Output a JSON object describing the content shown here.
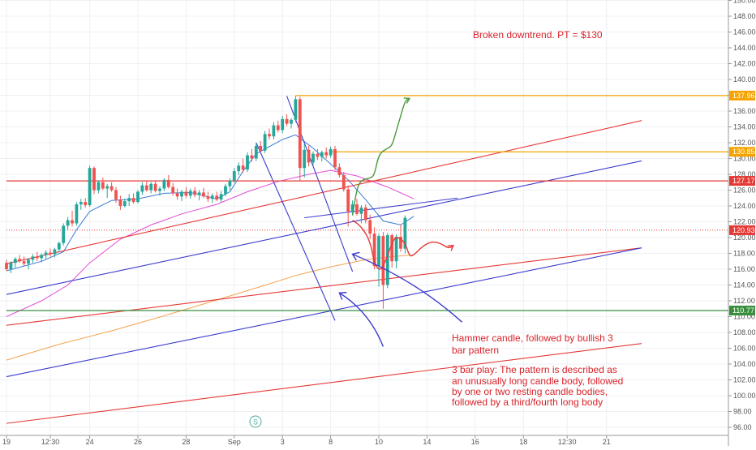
{
  "chart_data": {
    "type": "candlestick",
    "title": "",
    "ylim": [
      96,
      150
    ],
    "y_ticks": [
      "96.00",
      "98.00",
      "100.00",
      "102.00",
      "104.00",
      "106.00",
      "108.00",
      "110.00",
      "112.00",
      "114.00",
      "116.00",
      "118.00",
      "120.00",
      "122.00",
      "124.00",
      "126.00",
      "128.00",
      "130.00",
      "132.00",
      "134.00",
      "136.00",
      "138.00",
      "140.00",
      "142.00",
      "144.00",
      "146.00",
      "148.00",
      "150.00"
    ],
    "x_ticks": [
      {
        "label": "19",
        "idx": 0
      },
      {
        "label": "12:30",
        "idx": 10
      },
      {
        "label": "24",
        "idx": 19
      },
      {
        "label": "26",
        "idx": 30
      },
      {
        "label": "28",
        "idx": 41
      },
      {
        "label": "Sep",
        "idx": 52
      },
      {
        "label": "3",
        "idx": 63
      },
      {
        "label": "8",
        "idx": 74
      },
      {
        "label": "10",
        "idx": 85
      },
      {
        "label": "14",
        "idx": 96
      },
      {
        "label": "16",
        "idx": 107
      },
      {
        "label": "18",
        "idx": 118
      },
      {
        "label": "12:30",
        "idx": 128
      },
      {
        "label": "21",
        "idx": 137
      }
    ],
    "grid": true,
    "candles": [
      [
        116.8,
        117.2,
        115.8,
        116.0
      ],
      [
        116.0,
        117.0,
        115.5,
        116.8
      ],
      [
        116.8,
        117.5,
        116.2,
        117.3
      ],
      [
        117.3,
        117.8,
        116.8,
        117.0
      ],
      [
        117.0,
        117.6,
        116.4,
        116.7
      ],
      [
        116.7,
        117.4,
        116.0,
        117.2
      ],
      [
        117.2,
        117.9,
        116.8,
        117.6
      ],
      [
        117.6,
        118.2,
        117.0,
        117.4
      ],
      [
        117.4,
        118.0,
        116.9,
        117.8
      ],
      [
        117.8,
        118.4,
        117.3,
        118.1
      ],
      [
        118.1,
        118.6,
        117.6,
        117.9
      ],
      [
        117.9,
        118.7,
        117.5,
        118.5
      ],
      [
        118.5,
        119.5,
        118.2,
        119.3
      ],
      [
        119.3,
        121.8,
        119.0,
        121.5
      ],
      [
        121.5,
        122.6,
        121.0,
        122.2
      ],
      [
        122.2,
        123.4,
        121.4,
        121.8
      ],
      [
        121.8,
        124.5,
        121.5,
        124.2
      ],
      [
        124.2,
        124.9,
        123.5,
        124.5
      ],
      [
        124.5,
        125.0,
        123.8,
        124.1
      ],
      [
        124.1,
        129.1,
        123.9,
        128.8
      ],
      [
        128.8,
        129.0,
        125.5,
        126.0
      ],
      [
        126.0,
        127.2,
        125.6,
        127.0
      ],
      [
        127.0,
        127.6,
        126.0,
        126.2
      ],
      [
        126.2,
        126.8,
        125.0,
        126.5
      ],
      [
        126.5,
        127.0,
        125.8,
        126.0
      ],
      [
        126.0,
        126.4,
        124.4,
        124.8
      ],
      [
        124.8,
        125.3,
        123.5,
        124.0
      ],
      [
        124.0,
        124.9,
        123.8,
        124.6
      ],
      [
        124.6,
        125.5,
        124.0,
        125.0
      ],
      [
        125.0,
        125.6,
        124.3,
        124.5
      ],
      [
        124.5,
        126.0,
        124.3,
        125.8
      ],
      [
        125.8,
        127.0,
        125.4,
        126.6
      ],
      [
        126.6,
        127.2,
        125.8,
        126.0
      ],
      [
        126.0,
        127.0,
        125.6,
        126.8
      ],
      [
        126.8,
        127.1,
        125.7,
        125.9
      ],
      [
        125.9,
        126.5,
        125.3,
        126.2
      ],
      [
        126.2,
        127.5,
        125.9,
        127.3
      ],
      [
        127.3,
        127.9,
        126.2,
        126.4
      ],
      [
        126.4,
        126.9,
        125.3,
        125.6
      ],
      [
        125.6,
        126.2,
        124.8,
        125.2
      ],
      [
        125.2,
        126.0,
        124.6,
        125.8
      ],
      [
        125.8,
        126.4,
        125.0,
        125.3
      ],
      [
        125.3,
        126.2,
        124.9,
        125.9
      ],
      [
        125.9,
        126.4,
        125.1,
        125.4
      ],
      [
        125.4,
        126.0,
        124.7,
        125.7
      ],
      [
        125.7,
        126.3,
        125.0,
        125.2
      ],
      [
        125.2,
        125.8,
        124.5,
        124.9
      ],
      [
        124.9,
        125.6,
        124.4,
        125.3
      ],
      [
        125.3,
        125.8,
        124.6,
        124.8
      ],
      [
        124.8,
        125.9,
        124.5,
        125.5
      ],
      [
        125.5,
        126.8,
        125.2,
        126.5
      ],
      [
        126.5,
        127.5,
        126.0,
        127.2
      ],
      [
        127.2,
        128.8,
        126.9,
        128.4
      ],
      [
        128.4,
        129.5,
        127.9,
        129.1
      ],
      [
        129.1,
        130.0,
        128.2,
        128.6
      ],
      [
        128.6,
        130.8,
        128.3,
        130.4
      ],
      [
        130.4,
        131.2,
        129.6,
        130.0
      ],
      [
        130.0,
        132.0,
        129.7,
        131.6
      ],
      [
        131.6,
        132.2,
        130.8,
        131.0
      ],
      [
        131.0,
        133.5,
        130.7,
        133.1
      ],
      [
        133.1,
        133.8,
        132.4,
        132.8
      ],
      [
        132.8,
        134.6,
        132.4,
        134.2
      ],
      [
        134.2,
        134.8,
        133.3,
        133.6
      ],
      [
        133.6,
        135.4,
        133.2,
        135.0
      ],
      [
        135.0,
        135.6,
        134.1,
        134.4
      ],
      [
        134.4,
        135.1,
        133.8,
        134.9
      ],
      [
        134.9,
        137.9,
        134.6,
        137.5
      ],
      [
        137.5,
        137.8,
        127.2,
        128.8
      ],
      [
        128.8,
        131.8,
        127.6,
        131.1
      ],
      [
        131.1,
        131.6,
        129.0,
        129.5
      ],
      [
        129.5,
        130.9,
        129.1,
        130.6
      ],
      [
        130.6,
        131.2,
        129.8,
        130.2
      ],
      [
        130.2,
        131.0,
        129.6,
        130.8
      ],
      [
        130.8,
        131.4,
        130.0,
        130.4
      ],
      [
        130.4,
        131.5,
        130.1,
        131.2
      ],
      [
        131.2,
        131.6,
        128.5,
        128.9
      ],
      [
        128.9,
        129.4,
        127.6,
        127.9
      ],
      [
        127.9,
        128.3,
        125.8,
        126.1
      ],
      [
        126.1,
        126.6,
        121.4,
        123.3
      ],
      [
        123.3,
        124.7,
        122.9,
        124.2
      ],
      [
        124.2,
        124.9,
        122.8,
        123.0
      ],
      [
        123.0,
        124.1,
        121.8,
        123.8
      ],
      [
        123.8,
        124.2,
        121.8,
        122.2
      ],
      [
        122.2,
        122.9,
        119.8,
        120.5
      ],
      [
        120.5,
        121.3,
        116.0,
        116.4
      ],
      [
        116.4,
        120.5,
        113.8,
        120.2
      ],
      [
        120.2,
        120.7,
        111.0,
        114.0
      ],
      [
        114.0,
        120.6,
        113.6,
        120.3
      ],
      [
        120.3,
        120.5,
        116.2,
        117.0
      ],
      [
        117.0,
        120.4,
        116.1,
        120.1
      ],
      [
        120.1,
        121.6,
        118.2,
        118.6
      ],
      [
        118.6,
        122.8,
        118.0,
        122.5
      ]
    ],
    "moving_averages": [
      {
        "name": "",
        "color": "#3a7bd5",
        "values": [
          [
            0,
            115.8
          ],
          [
            8,
            117.0
          ],
          [
            13,
            118.2
          ],
          [
            16,
            121.0
          ],
          [
            19,
            123.3
          ],
          [
            24,
            124.7
          ],
          [
            30,
            124.9
          ],
          [
            36,
            125.6
          ],
          [
            42,
            125.7
          ],
          [
            48,
            124.9
          ],
          [
            51,
            125.8
          ],
          [
            54,
            128.4
          ],
          [
            57,
            130.6
          ],
          [
            63,
            132.4
          ],
          [
            66,
            133.0
          ],
          [
            70,
            131.3
          ],
          [
            74,
            129.3
          ],
          [
            78,
            127.3
          ],
          [
            82,
            124.8
          ],
          [
            86,
            122.1
          ],
          [
            90,
            121.6
          ],
          [
            93,
            122.7
          ]
        ]
      },
      {
        "name": "",
        "color": "#e24bd3",
        "values": [
          [
            0,
            110.0
          ],
          [
            8,
            112.0
          ],
          [
            14,
            114.0
          ],
          [
            19,
            116.8
          ],
          [
            26,
            119.8
          ],
          [
            33,
            121.6
          ],
          [
            40,
            123.0
          ],
          [
            48,
            124.2
          ],
          [
            55,
            125.8
          ],
          [
            62,
            127.1
          ],
          [
            69,
            128.0
          ],
          [
            74,
            128.5
          ],
          [
            80,
            127.8
          ],
          [
            87,
            126.4
          ],
          [
            93,
            124.9
          ]
        ]
      },
      {
        "name": "",
        "color": "#f4a34f",
        "values": [
          [
            0,
            104.5
          ],
          [
            12,
            106.5
          ],
          [
            24,
            108.2
          ],
          [
            36,
            110.1
          ],
          [
            48,
            112.1
          ],
          [
            58,
            113.8
          ],
          [
            66,
            115.2
          ],
          [
            74,
            116.3
          ],
          [
            82,
            117.2
          ],
          [
            88,
            117.6
          ],
          [
            93,
            117.8
          ]
        ]
      }
    ],
    "horizontal_levels": [
      {
        "price": 137.96,
        "label": "137.96",
        "color": "#f6a300",
        "x_start_idx": 66
      },
      {
        "price": 130.85,
        "label": "130.85",
        "color": "#f6a300",
        "x_start_idx": 74
      },
      {
        "price": 127.17,
        "label": "127.17",
        "color": "#e53935",
        "x_start_idx": 0
      },
      {
        "price": 120.93,
        "label": "120.93",
        "color": "#e53935",
        "x_start_idx": 0,
        "dotted": true
      },
      {
        "price": 110.77,
        "label": "110.77",
        "color": "#388e3c",
        "x_start_idx": 0
      }
    ],
    "trendlines": [
      {
        "color": "#e53935",
        "from": [
          0,
          116.7
        ],
        "to": [
          145,
          134.8
        ]
      },
      {
        "color": "#e53935",
        "from": [
          0,
          108.9
        ],
        "to": [
          145,
          118.7
        ]
      },
      {
        "color": "#e53935",
        "from": [
          0,
          96.5
        ],
        "to": [
          145,
          106.6
        ]
      },
      {
        "color": "#3b3ccc",
        "from": [
          0,
          112.8
        ],
        "to": [
          145,
          129.7
        ]
      },
      {
        "color": "#3b3ccc",
        "from": [
          0,
          102.4
        ],
        "to": [
          145,
          118.7
        ]
      },
      {
        "color": "#3b3ccc",
        "from": [
          68,
          122.5
        ],
        "to": [
          103,
          125.0
        ]
      },
      {
        "color": "#3b3ccc",
        "from": [
          57,
          132.0
        ],
        "to": [
          75,
          109.5
        ]
      },
      {
        "color": "#3b3ccc",
        "from": [
          64,
          137.9
        ],
        "to": [
          79,
          115.7
        ]
      }
    ],
    "annotations": [
      {
        "text": "Broken downtrend. PT = $130",
        "color": "#e53935"
      },
      {
        "text": "Hammer candle, followed by bullish 3",
        "color": "#e53935"
      },
      {
        "text": "bar pattern",
        "color": "#e53935"
      },
      {
        "text": "3 bar play: The pattern is described as",
        "color": "#e53935"
      },
      {
        "text": "an unusually long candle body, followed",
        "color": "#e53935"
      },
      {
        "text": "by one or two resting candle bodies,",
        "color": "#e53935"
      },
      {
        "text": "followed by a third/fourth long body",
        "color": "#e53935"
      }
    ],
    "paths": [
      {
        "name": "bullish-projection",
        "color": "#4a9a3a",
        "points": [
          [
            79,
            122.8
          ],
          [
            80,
            126.2
          ],
          [
            81,
            127.3
          ],
          [
            83,
            127.5
          ],
          [
            84,
            127.9
          ],
          [
            85,
            130.6
          ],
          [
            87,
            131.3
          ],
          [
            88,
            131.6
          ],
          [
            89,
            133.5
          ],
          [
            90,
            135.4
          ],
          [
            91,
            137.3
          ],
          [
            92,
            137.6
          ]
        ]
      },
      {
        "name": "bearish-projection",
        "color": "#e53935",
        "points": [
          [
            79,
            122.2
          ],
          [
            81,
            121.4
          ],
          [
            83,
            119.6
          ],
          [
            84,
            116.7
          ],
          [
            85,
            115.9
          ],
          [
            86,
            116.2
          ],
          [
            88,
            119.3
          ],
          [
            89,
            120.2
          ],
          [
            91,
            119.4
          ],
          [
            92,
            117.6
          ],
          [
            93,
            117.8
          ],
          [
            95,
            118.9
          ],
          [
            97,
            119.5
          ],
          [
            99,
            119.3
          ],
          [
            101,
            118.6
          ],
          [
            102,
            119.0
          ]
        ]
      }
    ],
    "arrows": [
      {
        "color": "#3b3ccc",
        "from": [
          104,
          109.3
        ],
        "to": [
          79,
          117.9
        ]
      },
      {
        "color": "#3b3ccc",
        "from": [
          86,
          106.2
        ],
        "to": [
          76,
          113.0
        ]
      }
    ],
    "badge": "S"
  }
}
